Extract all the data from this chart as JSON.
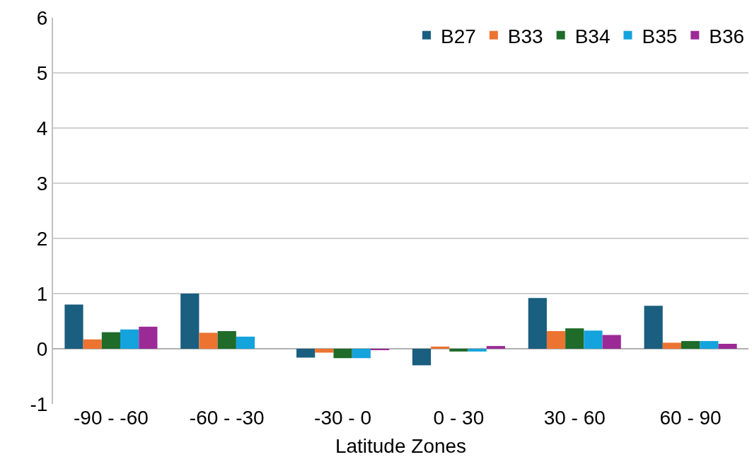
{
  "chart_data": {
    "type": "bar",
    "xlabel": "Latitude Zones",
    "categories": [
      "-90 - -60",
      "-60 - -30",
      "-30 - 0",
      "0 - 30",
      "30 - 60",
      "60 - 90"
    ],
    "series": [
      {
        "name": "B27",
        "color": "#1a5e80",
        "values": [
          0.8,
          1.0,
          -0.16,
          -0.3,
          0.92,
          0.78
        ]
      },
      {
        "name": "B33",
        "color": "#ed7330",
        "values": [
          0.17,
          0.29,
          -0.07,
          0.04,
          0.32,
          0.11
        ]
      },
      {
        "name": "B34",
        "color": "#1e6b2a",
        "values": [
          0.3,
          0.32,
          -0.17,
          -0.05,
          0.37,
          0.14
        ]
      },
      {
        "name": "B35",
        "color": "#14a3dc",
        "values": [
          0.35,
          0.22,
          -0.17,
          -0.05,
          0.33,
          0.14
        ]
      },
      {
        "name": "B36",
        "color": "#9b2a96",
        "values": [
          0.4,
          null,
          -0.02,
          0.05,
          0.25,
          0.09
        ]
      }
    ],
    "ylim": [
      -1,
      6
    ],
    "yticks": [
      -1,
      0,
      1,
      2,
      3,
      4,
      5,
      6
    ],
    "grid": "y",
    "legend": "top right"
  }
}
